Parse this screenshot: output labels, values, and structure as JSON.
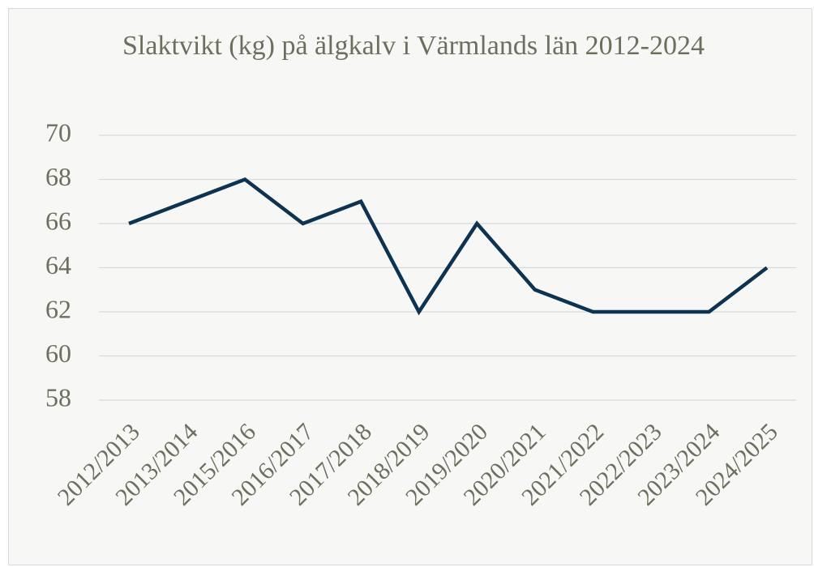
{
  "chart_data": {
    "type": "line",
    "title": "Slaktvikt (kg) på älgkalv i Värmlands län 2012-2024",
    "categories": [
      "2012/2013",
      "2013/2014",
      "2015/2016",
      "2016/2017",
      "2017/2018",
      "2018/2019",
      "2019/2020",
      "2020/2021",
      "2021/2022",
      "2022/2023",
      "2023/2024",
      "2024/2025"
    ],
    "values": [
      66,
      67,
      68,
      66,
      67,
      62,
      66,
      63,
      62,
      62,
      62,
      64
    ],
    "color": "#0d3350",
    "ylim": [
      58,
      70
    ],
    "yticks": [
      58,
      60,
      62,
      64,
      66,
      68,
      70
    ],
    "grid": true
  }
}
